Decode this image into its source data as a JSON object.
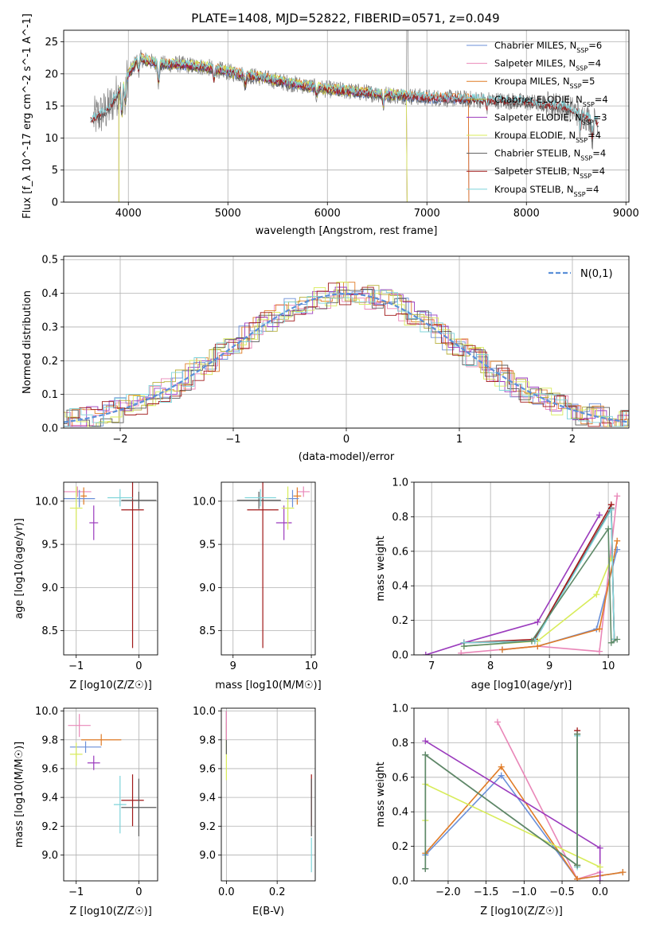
{
  "figure_title": "PLATE=1408, MJD=52822, FIBERID=0571, z=0.049",
  "colors": {
    "Chabrier MILES": "#6a8fd8",
    "Salpeter MILES": "#e987b8",
    "Kroupa MILES": "#e07b26",
    "Chabrier ELODIE": "#b8b03a",
    "Salpeter ELODIE": "#9b3bbd",
    "Kroupa ELODIE": "#d8ec5a",
    "Chabrier STELIB": "#5a5a5a",
    "Salpeter STELIB": "#a01818",
    "Kroupa STELIB": "#7fd4da",
    "gauss": "#5a8fd8",
    "extra": "#5e8a68"
  },
  "chart_data": [
    {
      "id": "spectrum",
      "type": "line",
      "title": "PLATE=1408, MJD=52822, FIBERID=0571, z=0.049",
      "xlabel": "wavelength [Angstrom, rest frame]",
      "ylabel": "Flux [f_λ 10^-17 erg cm^-2 s^-1 A^-1]",
      "xlim": [
        3350,
        9030
      ],
      "ylim": [
        0,
        26.8
      ],
      "xticks": [
        4000,
        5000,
        6000,
        7000,
        8000,
        9000
      ],
      "yticks": [
        0,
        5,
        10,
        15,
        20,
        25
      ],
      "legend_position": "top-right",
      "continuum": [
        [
          3650,
          13.0
        ],
        [
          3800,
          14.5
        ],
        [
          3950,
          18.5
        ],
        [
          4100,
          22.5
        ],
        [
          4300,
          21.5
        ],
        [
          4500,
          21.5
        ],
        [
          4800,
          21.0
        ],
        [
          5000,
          20.3
        ],
        [
          5300,
          19.5
        ],
        [
          5600,
          18.6
        ],
        [
          6000,
          17.6
        ],
        [
          6500,
          16.9
        ],
        [
          7000,
          16.3
        ],
        [
          7500,
          16.0
        ],
        [
          8000,
          15.6
        ],
        [
          8400,
          14.8
        ],
        [
          8700,
          12.6
        ]
      ],
      "series": [
        {
          "name": "Chabrier MILES",
          "nssp": "6"
        },
        {
          "name": "Salpeter MILES",
          "nssp": "4"
        },
        {
          "name": "Kroupa MILES",
          "nssp": "5"
        },
        {
          "name": "Chabrier ELODIE",
          "nssp": "4"
        },
        {
          "name": "Salpeter ELODIE",
          "nssp": "3"
        },
        {
          "name": "Kroupa ELODIE",
          "nssp": "4"
        },
        {
          "name": "Chabrier STELIB",
          "nssp": "4"
        },
        {
          "name": "Salpeter STELIB",
          "nssp": "4"
        },
        {
          "name": "Kroupa STELIB",
          "nssp": "4"
        }
      ]
    },
    {
      "id": "residuals",
      "type": "histogram",
      "xlabel": "(data-model)/error",
      "ylabel": "Normed distribution",
      "xlim": [
        -2.5,
        2.5
      ],
      "ylim": [
        0,
        0.51
      ],
      "xticks": [
        -2,
        -1,
        0,
        1,
        2
      ],
      "yticks": [
        0.0,
        0.1,
        0.2,
        0.3,
        0.4,
        0.5
      ],
      "legend": "N(0,1)",
      "legend_position": "top-right"
    },
    {
      "id": "age_vs_Z",
      "type": "errorbar",
      "xlabel": "Z [log10(Z/Z☉)]",
      "ylabel": "age [log10(age/yr)]",
      "xlim": [
        -1.2,
        0.3
      ],
      "ylim": [
        8.22,
        10.22
      ],
      "xticks": [
        -1,
        0
      ],
      "yticks": [
        8.5,
        9.0,
        9.5,
        10.0
      ],
      "points": [
        {
          "series": "Salpeter MILES",
          "x": -0.98,
          "xerr": 0.22,
          "y": 10.11,
          "yerr": 0.06
        },
        {
          "series": "Salpeter ELODIE",
          "x": -0.72,
          "xerr": 0.07,
          "y": 9.75,
          "yerr": 0.2
        },
        {
          "series": "Kroupa MILES",
          "x": -0.88,
          "xerr": 0.05,
          "y": 10.06,
          "yerr": 0.1
        },
        {
          "series": "Chabrier MILES",
          "x": -0.95,
          "xerr": 0.25,
          "y": 10.03,
          "yerr": 0.1
        },
        {
          "series": "Kroupa ELODIE",
          "x": -1.0,
          "xerr": 0.1,
          "y": 9.92,
          "yerr": 0.25
        },
        {
          "series": "Salpeter STELIB",
          "x": -0.1,
          "xerr": 0.18,
          "y": 9.9,
          "yerr": 1.6
        },
        {
          "series": "Chabrier STELIB",
          "x": 0.0,
          "xerr": 0.28,
          "y": 10.01,
          "yerr": 0.1
        },
        {
          "series": "Kroupa STELIB",
          "x": -0.3,
          "xerr": 0.2,
          "y": 10.04,
          "yerr": 0.1
        }
      ]
    },
    {
      "id": "age_vs_mass",
      "type": "errorbar",
      "xlabel": "mass [log10(M/M☉)]",
      "xlim": [
        8.85,
        10.05
      ],
      "ylim": [
        8.22,
        10.22
      ],
      "xticks": [
        9,
        10
      ],
      "yticks": [
        8.5,
        9.0,
        9.5,
        10.0
      ],
      "points": [
        {
          "series": "Salpeter MILES",
          "x": 9.9,
          "xerr": 0.08,
          "y": 10.11,
          "yerr": 0.06
        },
        {
          "series": "Salpeter ELODIE",
          "x": 9.65,
          "xerr": 0.1,
          "y": 9.75,
          "yerr": 0.2
        },
        {
          "series": "Kroupa MILES",
          "x": 9.82,
          "xerr": 0.05,
          "y": 10.06,
          "yerr": 0.1
        },
        {
          "series": "Chabrier MILES",
          "x": 9.76,
          "xerr": 0.08,
          "y": 10.03,
          "yerr": 0.1
        },
        {
          "series": "Kroupa ELODIE",
          "x": 9.7,
          "xerr": 0.08,
          "y": 9.92,
          "yerr": 0.25
        },
        {
          "series": "Salpeter STELIB",
          "x": 9.38,
          "xerr": 0.2,
          "y": 9.9,
          "yerr": 1.6
        },
        {
          "series": "Chabrier STELIB",
          "x": 9.33,
          "xerr": 0.28,
          "y": 10.01,
          "yerr": 0.1
        },
        {
          "series": "Kroupa STELIB",
          "x": 9.35,
          "xerr": 0.2,
          "y": 10.04,
          "yerr": 0.1
        }
      ]
    },
    {
      "id": "weight_vs_age",
      "type": "line",
      "xlabel": "age [log10(age/yr)]",
      "ylabel": "mass weight",
      "xlim": [
        6.7,
        10.35
      ],
      "ylim": [
        0,
        1.0
      ],
      "xticks": [
        7,
        8,
        9,
        10
      ],
      "yticks": [
        0.0,
        0.2,
        0.4,
        0.6,
        0.8,
        1.0
      ],
      "series": [
        {
          "name": "Chabrier MILES",
          "x": [
            8.2,
            8.8,
            9.8,
            10.15
          ],
          "y": [
            0.03,
            0.05,
            0.15,
            0.61
          ]
        },
        {
          "name": "Salpeter MILES",
          "x": [
            7.5,
            8.8,
            9.85,
            10.15
          ],
          "y": [
            0.01,
            0.05,
            0.02,
            0.92
          ]
        },
        {
          "name": "Kroupa MILES",
          "x": [
            8.2,
            8.8,
            9.85,
            10.15
          ],
          "y": [
            0.03,
            0.05,
            0.15,
            0.66
          ]
        },
        {
          "name": "Salpeter ELODIE",
          "x": [
            6.9,
            7.55,
            8.8,
            9.85
          ],
          "y": [
            0.0,
            0.07,
            0.19,
            0.81
          ]
        },
        {
          "name": "Kroupa ELODIE",
          "x": [
            7.55,
            8.8,
            9.8,
            10.05
          ],
          "y": [
            0.05,
            0.08,
            0.35,
            0.56
          ]
        },
        {
          "name": "Chabrier STELIB",
          "x": [
            7.55,
            8.75,
            10.05,
            10.1
          ],
          "y": [
            0.07,
            0.08,
            0.85,
            0.09
          ]
        },
        {
          "name": "Salpeter STELIB",
          "x": [
            7.55,
            8.75,
            10.05,
            10.1
          ],
          "y": [
            0.07,
            0.09,
            0.87,
            0.09
          ]
        },
        {
          "name": "Kroupa STELIB",
          "x": [
            7.55,
            8.75,
            10.05,
            10.1
          ],
          "y": [
            0.07,
            0.08,
            0.84,
            0.09
          ]
        },
        {
          "name": "extra",
          "x": [
            7.55,
            8.7,
            10.0,
            10.05,
            10.15
          ],
          "y": [
            0.05,
            0.08,
            0.73,
            0.07,
            0.09
          ]
        }
      ]
    },
    {
      "id": "mass_vs_Z",
      "type": "errorbar",
      "xlabel": "Z [log10(Z/Z☉)]",
      "ylabel": "mass [log10(M/M☉)]",
      "xlim": [
        -1.2,
        0.3
      ],
      "ylim": [
        8.82,
        10.02
      ],
      "xticks": [
        -1,
        0
      ],
      "yticks": [
        9.0,
        9.2,
        9.4,
        9.6,
        9.8,
        10.0
      ],
      "points": [
        {
          "series": "Salpeter MILES",
          "x": -0.95,
          "xerr": 0.18,
          "y": 9.9,
          "yerr": 0.08
        },
        {
          "series": "Salpeter ELODIE",
          "x": -0.72,
          "xerr": 0.1,
          "y": 9.64,
          "yerr": 0.05
        },
        {
          "series": "Kroupa MILES",
          "x": -0.6,
          "xerr": 0.32,
          "y": 9.8,
          "yerr": 0.04
        },
        {
          "series": "Chabrier MILES",
          "x": -0.85,
          "xerr": 0.25,
          "y": 9.75,
          "yerr": 0.04
        },
        {
          "series": "Kroupa ELODIE",
          "x": -1.0,
          "xerr": 0.1,
          "y": 9.7,
          "yerr": 0.08
        },
        {
          "series": "Salpeter STELIB",
          "x": -0.1,
          "xerr": 0.18,
          "y": 9.38,
          "yerr": 0.18
        },
        {
          "series": "Chabrier STELIB",
          "x": 0.0,
          "xerr": 0.28,
          "y": 9.33,
          "yerr": 0.2
        },
        {
          "series": "Kroupa STELIB",
          "x": -0.3,
          "xerr": 0.1,
          "y": 9.35,
          "yerr": 0.2
        }
      ]
    },
    {
      "id": "mass_vs_EBV",
      "type": "errorbar",
      "xlabel": "E(B-V)",
      "xlim": [
        -0.02,
        0.35
      ],
      "ylim": [
        8.82,
        10.02
      ],
      "xticks": [
        0.0,
        0.2
      ],
      "yticks": [
        9.0,
        9.2,
        9.4,
        9.6,
        9.8,
        10.0
      ],
      "points": [
        {
          "series": "Kroupa ELODIE",
          "x": 0.0,
          "xerr": 0.0,
          "y": 9.72,
          "yerr": 0.2
        },
        {
          "series": "Chabrier STELIB",
          "x": 0.0,
          "xerr": 0.0,
          "y": 9.85,
          "yerr": 0.15
        },
        {
          "series": "Salpeter MILES",
          "x": 0.0,
          "xerr": 0.0,
          "y": 9.9,
          "yerr": 0.1
        },
        {
          "series": "Salpeter STELIB",
          "x": 0.335,
          "xerr": 0.0,
          "y": 9.38,
          "yerr": 0.18
        },
        {
          "series": "Chabrier STELIB",
          "x": 0.335,
          "xerr": 0.0,
          "y": 9.33,
          "yerr": 0.2
        },
        {
          "series": "Kroupa STELIB",
          "x": 0.335,
          "xerr": 0.0,
          "y": 9.0,
          "yerr": 0.12
        }
      ]
    },
    {
      "id": "weight_vs_Z",
      "type": "line",
      "xlabel": "Z [log10(Z/Z☉)]",
      "ylabel": "mass weight",
      "xlim": [
        -2.45,
        0.38
      ],
      "ylim": [
        0,
        1.0
      ],
      "xticks": [
        -2.0,
        -1.5,
        -1.0,
        -0.5,
        0.0
      ],
      "yticks": [
        0.0,
        0.2,
        0.4,
        0.6,
        0.8,
        1.0
      ],
      "series": [
        {
          "name": "Chabrier MILES",
          "x": [
            -2.3,
            -1.3,
            -0.3,
            0.0,
            0.3
          ],
          "y": [
            0.15,
            0.61,
            0.01,
            0.03,
            0.05
          ]
        },
        {
          "name": "Salpeter MILES",
          "x": [
            -1.35,
            -0.3,
            0.0
          ],
          "y": [
            0.92,
            0.01,
            0.05
          ]
        },
        {
          "name": "Kroupa MILES",
          "x": [
            -2.3,
            -1.3,
            -0.3,
            0.0,
            0.3
          ],
          "y": [
            0.16,
            0.66,
            0.01,
            0.03,
            0.05
          ]
        },
        {
          "name": "Salpeter ELODIE",
          "x": [
            -2.3,
            0.0,
            0.0
          ],
          "y": [
            0.81,
            0.19,
            0.0
          ]
        },
        {
          "name": "Kroupa ELODIE",
          "x": [
            -2.3,
            -2.3,
            0.0
          ],
          "y": [
            0.35,
            0.56,
            0.08
          ]
        },
        {
          "name": "Chabrier STELIB",
          "x": [
            -2.3,
            -2.3,
            -0.3,
            -0.3
          ],
          "y": [
            0.07,
            0.73,
            0.09,
            0.85
          ]
        },
        {
          "name": "Salpeter STELIB",
          "x": [
            -0.3,
            -0.3
          ],
          "y": [
            0.09,
            0.87
          ]
        },
        {
          "name": "Kroupa STELIB",
          "x": [
            -0.3,
            -0.3
          ],
          "y": [
            0.08,
            0.84
          ]
        },
        {
          "name": "extra",
          "x": [
            -2.3,
            -2.3,
            -0.3,
            -0.3
          ],
          "y": [
            0.07,
            0.73,
            0.09,
            0.85
          ]
        }
      ]
    }
  ]
}
